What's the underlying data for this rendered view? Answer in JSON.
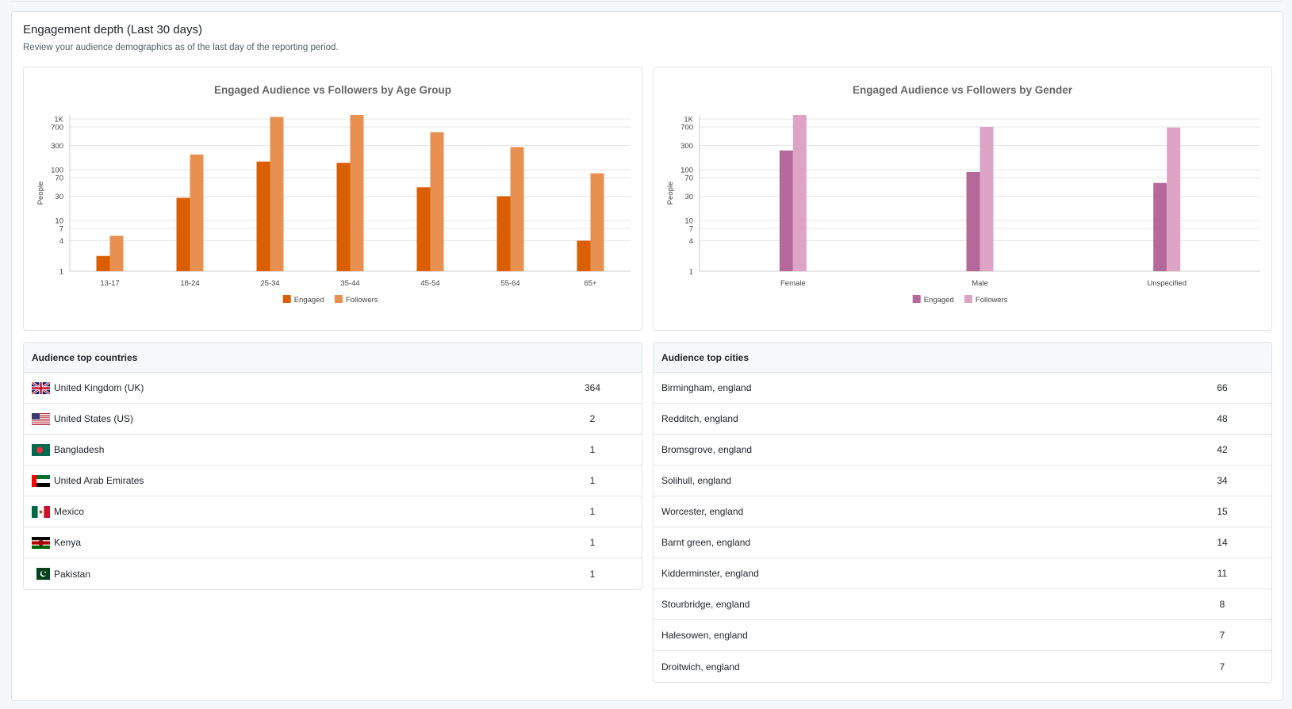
{
  "header": {
    "title": "Engagement depth (Last 30 days)",
    "subtitle": "Review your audience demographics as of the last day of the reporting period."
  },
  "colors": {
    "age_engaged": "#d95f02",
    "age_followers": "#e8904f",
    "gender_engaged": "#b5699b",
    "gender_followers": "#dda4c6"
  },
  "chart_data": [
    {
      "type": "bar",
      "title": "Engaged Audience vs Followers by Age Group",
      "ylabel": "People",
      "yscale": "log",
      "ylim": [
        1,
        1200
      ],
      "yticks": [
        1,
        4,
        7,
        10,
        30,
        70,
        100,
        300,
        700,
        "1K"
      ],
      "categories": [
        "13-17",
        "18-24",
        "25-34",
        "35-44",
        "45-54",
        "55-64",
        "65+"
      ],
      "series": [
        {
          "name": "Engaged",
          "values": [
            2,
            28,
            145,
            137,
            45,
            30,
            4
          ]
        },
        {
          "name": "Followers",
          "values": [
            5,
            200,
            1100,
            1200,
            550,
            280,
            85
          ]
        }
      ],
      "legend": "bottom-center",
      "grid": true
    },
    {
      "type": "bar",
      "title": "Engaged Audience vs Followers by Gender",
      "ylabel": "People",
      "yscale": "log",
      "ylim": [
        1,
        1200
      ],
      "yticks": [
        1,
        4,
        7,
        10,
        30,
        70,
        100,
        300,
        700,
        "1K"
      ],
      "categories": [
        "Female",
        "Male",
        "Unspecified"
      ],
      "series": [
        {
          "name": "Engaged",
          "values": [
            240,
            90,
            55
          ]
        },
        {
          "name": "Followers",
          "values": [
            1200,
            700,
            680
          ]
        }
      ],
      "legend": "bottom-center",
      "grid": true
    }
  ],
  "countries": {
    "title": "Audience top countries",
    "rows": [
      {
        "name": "United Kingdom (UK)",
        "flag": "flag-uk",
        "value": "364"
      },
      {
        "name": "United States (US)",
        "flag": "flag-us",
        "value": "2"
      },
      {
        "name": "Bangladesh",
        "flag": "flag-bd",
        "value": "1"
      },
      {
        "name": "United Arab Emirates",
        "flag": "flag-ae",
        "value": "1"
      },
      {
        "name": "Mexico",
        "flag": "flag-mx",
        "value": "1"
      },
      {
        "name": "Kenya",
        "flag": "flag-ke",
        "value": "1"
      },
      {
        "name": "Pakistan",
        "flag": "flag-pk",
        "value": "1"
      }
    ]
  },
  "cities": {
    "title": "Audience top cities",
    "rows": [
      {
        "name": "Birmingham, england",
        "value": "66"
      },
      {
        "name": "Redditch, england",
        "value": "48"
      },
      {
        "name": "Bromsgrove, england",
        "value": "42"
      },
      {
        "name": "Solihull, england",
        "value": "34"
      },
      {
        "name": "Worcester, england",
        "value": "15"
      },
      {
        "name": "Barnt green, england",
        "value": "14"
      },
      {
        "name": "Kidderminster, england",
        "value": "11"
      },
      {
        "name": "Stourbridge, england",
        "value": "8"
      },
      {
        "name": "Halesowen, england",
        "value": "7"
      },
      {
        "name": "Droitwich, england",
        "value": "7"
      }
    ]
  }
}
